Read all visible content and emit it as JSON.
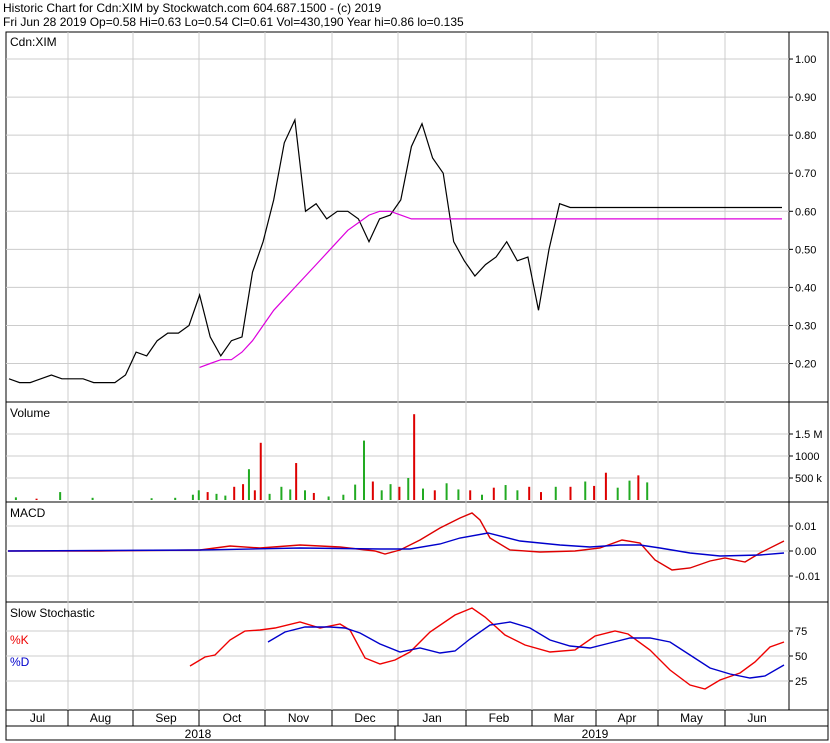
{
  "header": {
    "line1": "Historic Chart for Cdn:XIM by Stockwatch.com 604.687.1500 - (c) 2019",
    "line2": "Fri Jun 28 2019  Op=0.58  Hi=0.63  Lo=0.54  Cl=0.61  Vol=430,190  Year hi=0.86  lo=0.135"
  },
  "colors": {
    "price": "#000000",
    "ma": "#dd00dd",
    "vol_up": "#22aa22",
    "vol_down": "#dd0000",
    "vol_neutral": "#aaaaaa",
    "macd": "#dd0000",
    "signal": "#0000cc",
    "k": "#ee0000",
    "d": "#0000cc",
    "grid": "#cccccc"
  },
  "chart_data": [
    {
      "type": "line",
      "panel": "price",
      "title": "Cdn:XIM",
      "ylim": [
        0.12,
        1.05
      ],
      "yticks": [
        "0.20",
        "0.30",
        "0.40",
        "0.50",
        "0.60",
        "0.70",
        "0.80",
        "0.90",
        "1.00"
      ],
      "x": [
        0,
        5,
        10,
        15,
        20,
        25,
        30,
        35,
        40,
        45,
        50,
        55,
        60,
        65,
        70,
        75,
        80,
        85,
        90,
        95,
        100,
        105,
        110,
        115,
        120,
        125,
        130,
        135,
        140,
        145,
        150,
        155,
        160,
        165,
        170,
        175,
        180,
        185,
        190,
        195,
        200,
        205,
        210,
        215,
        220,
        225,
        230,
        235,
        240,
        245,
        250,
        255,
        260,
        265,
        270,
        275,
        280,
        285,
        290,
        295,
        300,
        305,
        310,
        315,
        320,
        325,
        330,
        335,
        340,
        345,
        350,
        355,
        360,
        365
      ],
      "series": [
        {
          "role": "close",
          "values": [
            0.16,
            0.15,
            0.15,
            0.16,
            0.17,
            0.16,
            0.16,
            0.16,
            0.15,
            0.15,
            0.15,
            0.17,
            0.23,
            0.22,
            0.26,
            0.28,
            0.28,
            0.3,
            0.38,
            0.27,
            0.22,
            0.26,
            0.27,
            0.44,
            0.52,
            0.63,
            0.78,
            0.84,
            0.6,
            0.62,
            0.58,
            0.6,
            0.6,
            0.58,
            0.52,
            0.58,
            0.59,
            0.63,
            0.77,
            0.83,
            0.74,
            0.7,
            0.52,
            0.47,
            0.43,
            0.46,
            0.48,
            0.52,
            0.47,
            0.48,
            0.34,
            0.5,
            0.62,
            0.61,
            0.61,
            0.61,
            0.61,
            0.61,
            0.61,
            0.61,
            0.61,
            0.61,
            0.61,
            0.61,
            0.61,
            0.61,
            0.61,
            0.61,
            0.61,
            0.61,
            0.61,
            0.61,
            0.61,
            0.61
          ]
        },
        {
          "role": "moving-average",
          "values": [
            null,
            null,
            null,
            null,
            null,
            null,
            null,
            null,
            null,
            null,
            null,
            null,
            null,
            null,
            null,
            null,
            null,
            null,
            0.19,
            0.2,
            0.21,
            0.21,
            0.23,
            0.26,
            0.3,
            0.34,
            0.37,
            0.4,
            0.43,
            0.46,
            0.49,
            0.52,
            0.55,
            0.57,
            0.59,
            0.6,
            0.6,
            0.59,
            0.58,
            0.58,
            0.58,
            0.58,
            0.58,
            0.58,
            0.58,
            0.58,
            0.58,
            0.58,
            0.58,
            0.58,
            0.58,
            0.58,
            0.58,
            0.58,
            0.58,
            0.58,
            0.58,
            0.58,
            0.58,
            0.58,
            0.58,
            0.58,
            0.58,
            0.58,
            0.58,
            0.58,
            0.58,
            0.58,
            0.58,
            0.58,
            0.58,
            0.58,
            0.58,
            0.58
          ]
        }
      ]
    },
    {
      "type": "bar",
      "panel": "volume",
      "title": "Volume",
      "yticks": [
        "1.5 M",
        "1000",
        "500 k"
      ],
      "bars": [
        {
          "x": 2,
          "v": 0.06,
          "c": "g"
        },
        {
          "x": 9,
          "v": 0.03,
          "c": "r"
        },
        {
          "x": 17,
          "v": 0.18,
          "c": "g"
        },
        {
          "x": 28,
          "v": 0.05,
          "c": "g"
        },
        {
          "x": 48,
          "v": 0.04,
          "c": "g"
        },
        {
          "x": 56,
          "v": 0.05,
          "c": "g"
        },
        {
          "x": 62,
          "v": 0.12,
          "c": "g"
        },
        {
          "x": 64,
          "v": 0.22,
          "c": "g"
        },
        {
          "x": 67,
          "v": 0.18,
          "c": "r"
        },
        {
          "x": 70,
          "v": 0.14,
          "c": "g"
        },
        {
          "x": 73,
          "v": 0.1,
          "c": "g"
        },
        {
          "x": 76,
          "v": 0.3,
          "c": "r"
        },
        {
          "x": 79,
          "v": 0.36,
          "c": "r"
        },
        {
          "x": 81,
          "v": 0.7,
          "c": "g"
        },
        {
          "x": 83,
          "v": 0.22,
          "c": "r"
        },
        {
          "x": 85,
          "v": 1.3,
          "c": "r"
        },
        {
          "x": 88,
          "v": 0.14,
          "c": "g"
        },
        {
          "x": 92,
          "v": 0.3,
          "c": "g"
        },
        {
          "x": 95,
          "v": 0.24,
          "c": "g"
        },
        {
          "x": 97,
          "v": 0.84,
          "c": "r"
        },
        {
          "x": 100,
          "v": 0.22,
          "c": "g"
        },
        {
          "x": 103,
          "v": 0.16,
          "c": "r"
        },
        {
          "x": 108,
          "v": 0.08,
          "c": "g"
        },
        {
          "x": 113,
          "v": 0.12,
          "c": "g"
        },
        {
          "x": 117,
          "v": 0.35,
          "c": "g"
        },
        {
          "x": 120,
          "v": 1.35,
          "c": "g"
        },
        {
          "x": 123,
          "v": 0.42,
          "c": "r"
        },
        {
          "x": 126,
          "v": 0.22,
          "c": "g"
        },
        {
          "x": 129,
          "v": 0.36,
          "c": "g"
        },
        {
          "x": 132,
          "v": 0.3,
          "c": "r"
        },
        {
          "x": 135,
          "v": 0.5,
          "c": "g"
        },
        {
          "x": 137,
          "v": 1.95,
          "c": "r"
        },
        {
          "x": 140,
          "v": 0.26,
          "c": "g"
        },
        {
          "x": 144,
          "v": 0.22,
          "c": "r"
        },
        {
          "x": 148,
          "v": 0.38,
          "c": "g"
        },
        {
          "x": 152,
          "v": 0.24,
          "c": "g"
        },
        {
          "x": 156,
          "v": 0.22,
          "c": "r"
        },
        {
          "x": 160,
          "v": 0.12,
          "c": "g"
        },
        {
          "x": 164,
          "v": 0.28,
          "c": "r"
        },
        {
          "x": 168,
          "v": 0.34,
          "c": "g"
        },
        {
          "x": 172,
          "v": 0.22,
          "c": "g"
        },
        {
          "x": 176,
          "v": 0.3,
          "c": "r"
        },
        {
          "x": 180,
          "v": 0.18,
          "c": "r"
        },
        {
          "x": 185,
          "v": 0.3,
          "c": "g"
        },
        {
          "x": 190,
          "v": 0.3,
          "c": "r"
        },
        {
          "x": 195,
          "v": 0.42,
          "c": "g"
        },
        {
          "x": 198,
          "v": 0.32,
          "c": "r"
        },
        {
          "x": 202,
          "v": 0.62,
          "c": "r"
        },
        {
          "x": 206,
          "v": 0.28,
          "c": "g"
        },
        {
          "x": 210,
          "v": 0.44,
          "c": "g"
        },
        {
          "x": 213,
          "v": 0.56,
          "c": "r"
        },
        {
          "x": 216,
          "v": 0.4,
          "c": "g"
        }
      ]
    },
    {
      "type": "line",
      "panel": "macd",
      "title": "MACD",
      "ylim": [
        -0.015,
        0.015
      ],
      "yticks": [
        "0.01",
        "0.00",
        "-0.01"
      ],
      "x": [
        0,
        30,
        60,
        85,
        110,
        130,
        150,
        165,
        180,
        195,
        210,
        220,
        230,
        240,
        250,
        260,
        270,
        280,
        290,
        300,
        310,
        330
      ],
      "series": [
        {
          "role": "macd",
          "values": [
            0.0,
            0.0,
            0.0,
            0.002,
            0.001,
            0.003,
            0.0,
            -0.002,
            0.008,
            0.015,
            0.0,
            -0.001,
            0.004,
            -0.006,
            -0.007,
            -0.002,
            -0.002,
            0.002,
            0.003,
            0.003,
            0.003,
            0.003
          ]
        },
        {
          "role": "signal",
          "values": [
            0.0,
            0.0,
            0.0,
            0.001,
            0.001,
            0.002,
            0.0,
            0.0,
            0.004,
            0.007,
            0.002,
            0.001,
            0.002,
            0.0,
            -0.002,
            -0.002,
            -0.002,
            -0.001,
            0.0,
            0.0,
            0.0,
            0.0
          ]
        }
      ]
    },
    {
      "type": "line",
      "panel": "stochastic",
      "title": "Slow Stochastic",
      "legend": [
        {
          "label": "%K"
        },
        {
          "label": "%D"
        }
      ],
      "ylim": [
        0,
        100
      ],
      "yticks": [
        "75",
        "50",
        "25"
      ],
      "x": [
        0,
        10,
        20,
        30,
        40,
        50,
        60,
        70,
        80,
        90,
        100,
        110,
        120,
        130,
        140,
        150,
        160,
        170,
        180,
        190,
        200,
        210,
        220,
        230,
        240,
        250,
        260
      ],
      "series": [
        {
          "role": "k",
          "values": [
            null,
            null,
            null,
            null,
            null,
            null,
            null,
            null,
            null,
            null,
            null,
            null,
            null,
            null,
            null,
            null,
            null,
            null,
            null,
            null,
            null,
            null,
            null,
            null,
            null,
            null,
            null
          ]
        },
        {
          "role": "d",
          "values": [
            null,
            null,
            null,
            null,
            null,
            null,
            null,
            null,
            null,
            null,
            null,
            null,
            null,
            null,
            null,
            null,
            null,
            null,
            null,
            null,
            null,
            null,
            null,
            null,
            null,
            null,
            null
          ]
        }
      ]
    }
  ],
  "axis": {
    "months": [
      "Jul",
      "Aug",
      "Sep",
      "Oct",
      "Nov",
      "Dec",
      "Jan",
      "Feb",
      "Mar",
      "Apr",
      "May",
      "Jun"
    ],
    "years": [
      "2018",
      "2019"
    ]
  }
}
